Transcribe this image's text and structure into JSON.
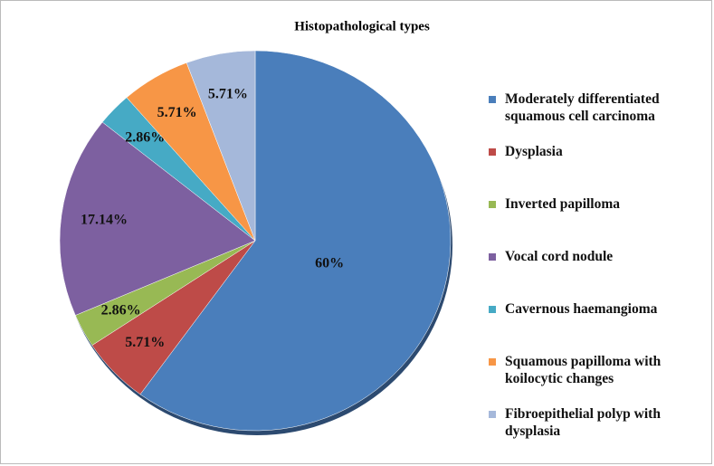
{
  "chart_data": {
    "type": "pie",
    "title": "Histopathological types",
    "categories": [
      "Moderately differentiated squamous cell carcinoma",
      "Dysplasia",
      "Inverted papilloma",
      "Vocal cord nodule",
      "Cavernous haemangioma",
      "Squamous papilloma with koilocytic changes",
      "Fibroepithelial polyp with dysplasia"
    ],
    "values": [
      60,
      5.71,
      2.86,
      17.14,
      2.86,
      5.71,
      5.71
    ],
    "value_labels": [
      "60%",
      "5.71%",
      "2.86%",
      "17.14%",
      "2.86%",
      "5.71%",
      "5.71%"
    ],
    "colors": [
      "#4a7ebb",
      "#be4b48",
      "#98b954",
      "#7d60a0",
      "#46aac5",
      "#f79646",
      "#a5b8da"
    ],
    "legend": "right"
  }
}
